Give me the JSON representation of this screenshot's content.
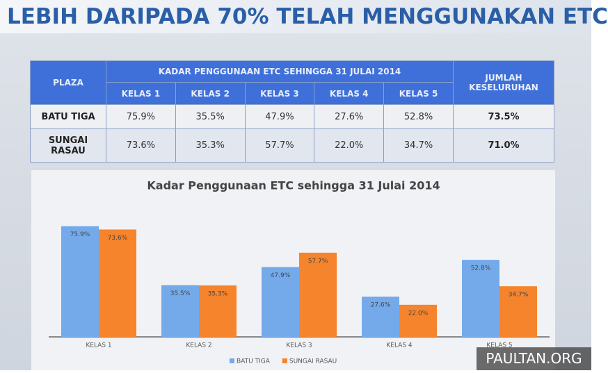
{
  "header": {
    "title": "LEBIH DARIPADA 70% TELAH MENGGUNAKAN ETC"
  },
  "table": {
    "header_row_1": [
      "PLAZA",
      "KADAR PENGGUNAAN ETC SEHINGGA 31 JULAI 2014",
      "JUMLAH KESELURUHAN"
    ],
    "header_row_2": [
      "KELAS 1",
      "KELAS 2",
      "KELAS 3",
      "KELAS 4",
      "KELAS 5"
    ],
    "rows": [
      [
        "BATU TIGA",
        "75.9%",
        "35.5%",
        "47.9%",
        "27.6%",
        "52.8%",
        "73.5%"
      ],
      [
        "SUNGAI RASAU",
        "73.6%",
        "35.3%",
        "57.7%",
        "22.0%",
        "34.7%",
        "71.0%"
      ]
    ]
  },
  "chart_data": {
    "type": "bar",
    "title": "Kadar Penggunaan ETC sehingga 31 Julai 2014",
    "categories": [
      "KELAS 1",
      "KELAS 2",
      "KELAS 3",
      "KELAS 4",
      "KELAS 5"
    ],
    "series": [
      {
        "name": "BATU TIGA",
        "color": "#74aaea",
        "values": [
          75.9,
          35.5,
          47.9,
          27.6,
          52.8
        ],
        "value_labels": [
          "75.9%",
          "35.5%",
          "47.9%",
          "27.6%",
          "52.8%"
        ]
      },
      {
        "name": "SUNGAI RASAU",
        "color": "#f5842c",
        "values": [
          73.6,
          35.3,
          57.7,
          22.0,
          34.7
        ],
        "value_labels": [
          "73.6%",
          "35.3%",
          "57.7%",
          "22.0%",
          "34.7%"
        ]
      }
    ],
    "ylim": [
      0,
      80
    ],
    "legend": "bottom"
  },
  "watermark": "PAULTAN.ORG"
}
